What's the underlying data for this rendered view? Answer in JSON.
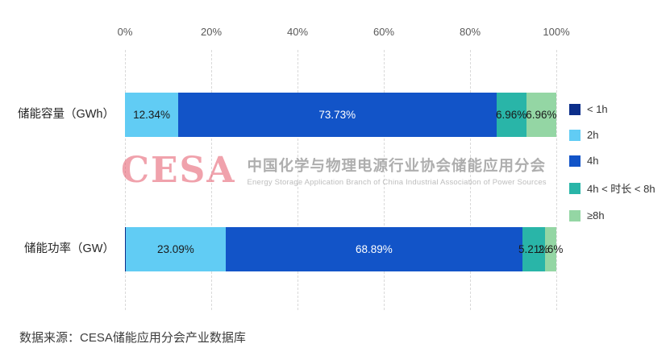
{
  "chart_data": {
    "type": "bar",
    "orientation": "horizontal",
    "stacked": true,
    "title": "",
    "xlabel": "",
    "ylabel": "",
    "xlim": [
      0,
      100
    ],
    "x_ticks": [
      "0%",
      "20%",
      "40%",
      "60%",
      "80%",
      "100%"
    ],
    "grid": "vertical-dashed",
    "legend_position": "right",
    "categories": [
      "储能容量（GWh）",
      "储能功率（GW）"
    ],
    "series": [
      {
        "name": "< 1h",
        "color": "#0c2e8a",
        "values": [
          0.01,
          0.21
        ],
        "labels": [
          "",
          ""
        ],
        "label_color": "#ffffff"
      },
      {
        "name": "2h",
        "color": "#61ccf4",
        "values": [
          12.34,
          23.09
        ],
        "labels": [
          "12.34%",
          "23.09%"
        ],
        "label_color": "#1a1a1a"
      },
      {
        "name": "4h",
        "color": "#1254c8",
        "values": [
          73.73,
          68.89
        ],
        "labels": [
          "73.73%",
          "68.89%"
        ],
        "label_color": "#ffffff"
      },
      {
        "name": "4h < 时长 < 8h",
        "color": "#29b5a8",
        "values": [
          6.96,
          5.21
        ],
        "labels": [
          "6.96%",
          "5.21%"
        ],
        "label_color": "#1a1a1a"
      },
      {
        "name": "≥8h",
        "color": "#94d6a4",
        "values": [
          6.96,
          2.6
        ],
        "labels": [
          "6.96%",
          "2.6%"
        ],
        "label_color": "#1a1a1a"
      }
    ]
  },
  "watermark": {
    "logo": "CESA",
    "title": "中国化学与物理电源行业协会储能应用分会",
    "subtitle": "Energy Storage Application Branch of China Industrial Association of Power Sources"
  },
  "source": "数据来源：CESA储能应用分会产业数据库",
  "colors": {
    "axis_text": "#595959",
    "category_text": "#262626",
    "gridline": "#d9d9d9",
    "watermark_red": "#e4576a",
    "watermark_gray": "#a6a6a6"
  }
}
